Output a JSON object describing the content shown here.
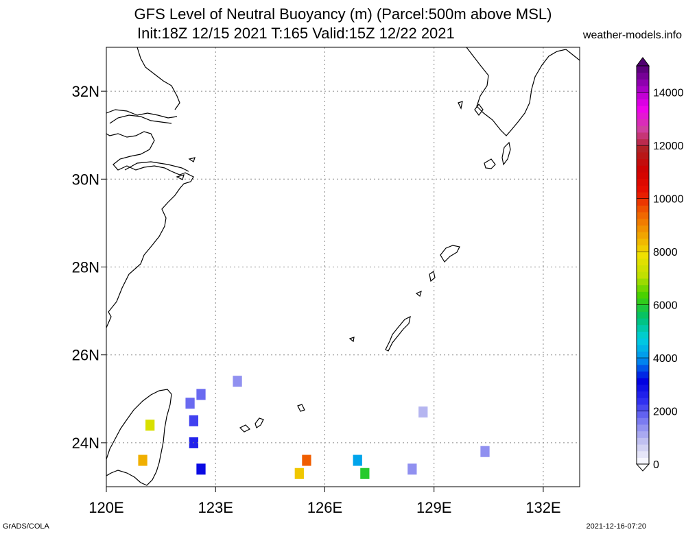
{
  "header": {
    "title_line1": "GFS Level of Neutral Buoyancy (m) (Parcel:500m above MSL)",
    "title_line2": "Init:18Z 12/15 2021 T:165 Valid:15Z 12/22 2021",
    "credit": "weather-models.info"
  },
  "footer": {
    "left": "GrADS/COLA",
    "right": "2021-12-16-07:20"
  },
  "map": {
    "lon_range": [
      120,
      133
    ],
    "lat_range": [
      23,
      33
    ],
    "x_ticks": [
      "120E",
      "123E",
      "126E",
      "129E",
      "132E"
    ],
    "x_tick_values": [
      120,
      123,
      126,
      129,
      132
    ],
    "y_ticks": [
      "24N",
      "26N",
      "28N",
      "30N",
      "32N"
    ],
    "y_tick_values": [
      24,
      26,
      28,
      30,
      32
    ],
    "grid": "dotted",
    "coastline_color": "#000000",
    "field_cells": [
      {
        "lon": 122.3,
        "lat": 24.9,
        "value": 1800
      },
      {
        "lon": 122.6,
        "lat": 25.1,
        "value": 1800
      },
      {
        "lon": 122.4,
        "lat": 24.5,
        "value": 2200
      },
      {
        "lon": 122.4,
        "lat": 24.0,
        "value": 2600
      },
      {
        "lon": 122.6,
        "lat": 23.4,
        "value": 3000
      },
      {
        "lon": 121.2,
        "lat": 24.4,
        "value": 7500
      },
      {
        "lon": 121.0,
        "lat": 23.6,
        "value": 8500
      },
      {
        "lon": 123.6,
        "lat": 25.4,
        "value": 1400
      },
      {
        "lon": 125.5,
        "lat": 23.6,
        "value": 9500
      },
      {
        "lon": 125.3,
        "lat": 23.3,
        "value": 8200
      },
      {
        "lon": 126.9,
        "lat": 23.6,
        "value": 4200
      },
      {
        "lon": 127.1,
        "lat": 23.3,
        "value": 6000
      },
      {
        "lon": 128.4,
        "lat": 23.4,
        "value": 1400
      },
      {
        "lon": 128.7,
        "lat": 24.7,
        "value": 1000
      },
      {
        "lon": 130.4,
        "lat": 23.8,
        "value": 1400
      }
    ]
  },
  "colorbar": {
    "min": 0,
    "max": 15000,
    "tick_labels": [
      "0",
      "2000",
      "4000",
      "6000",
      "8000",
      "10000",
      "12000",
      "14000"
    ],
    "tick_values": [
      0,
      2000,
      4000,
      6000,
      8000,
      10000,
      12000,
      14000
    ],
    "stops": [
      "#ffffff",
      "#c8c8f0",
      "#8080f0",
      "#3030f0",
      "#0000e0",
      "#0090f0",
      "#00d0e0",
      "#00c070",
      "#40d000",
      "#c0e000",
      "#f0e000",
      "#f0a000",
      "#f06000",
      "#e81000",
      "#d00000",
      "#b02020",
      "#d040a0",
      "#f000f0",
      "#a000c0",
      "#500070"
    ]
  }
}
